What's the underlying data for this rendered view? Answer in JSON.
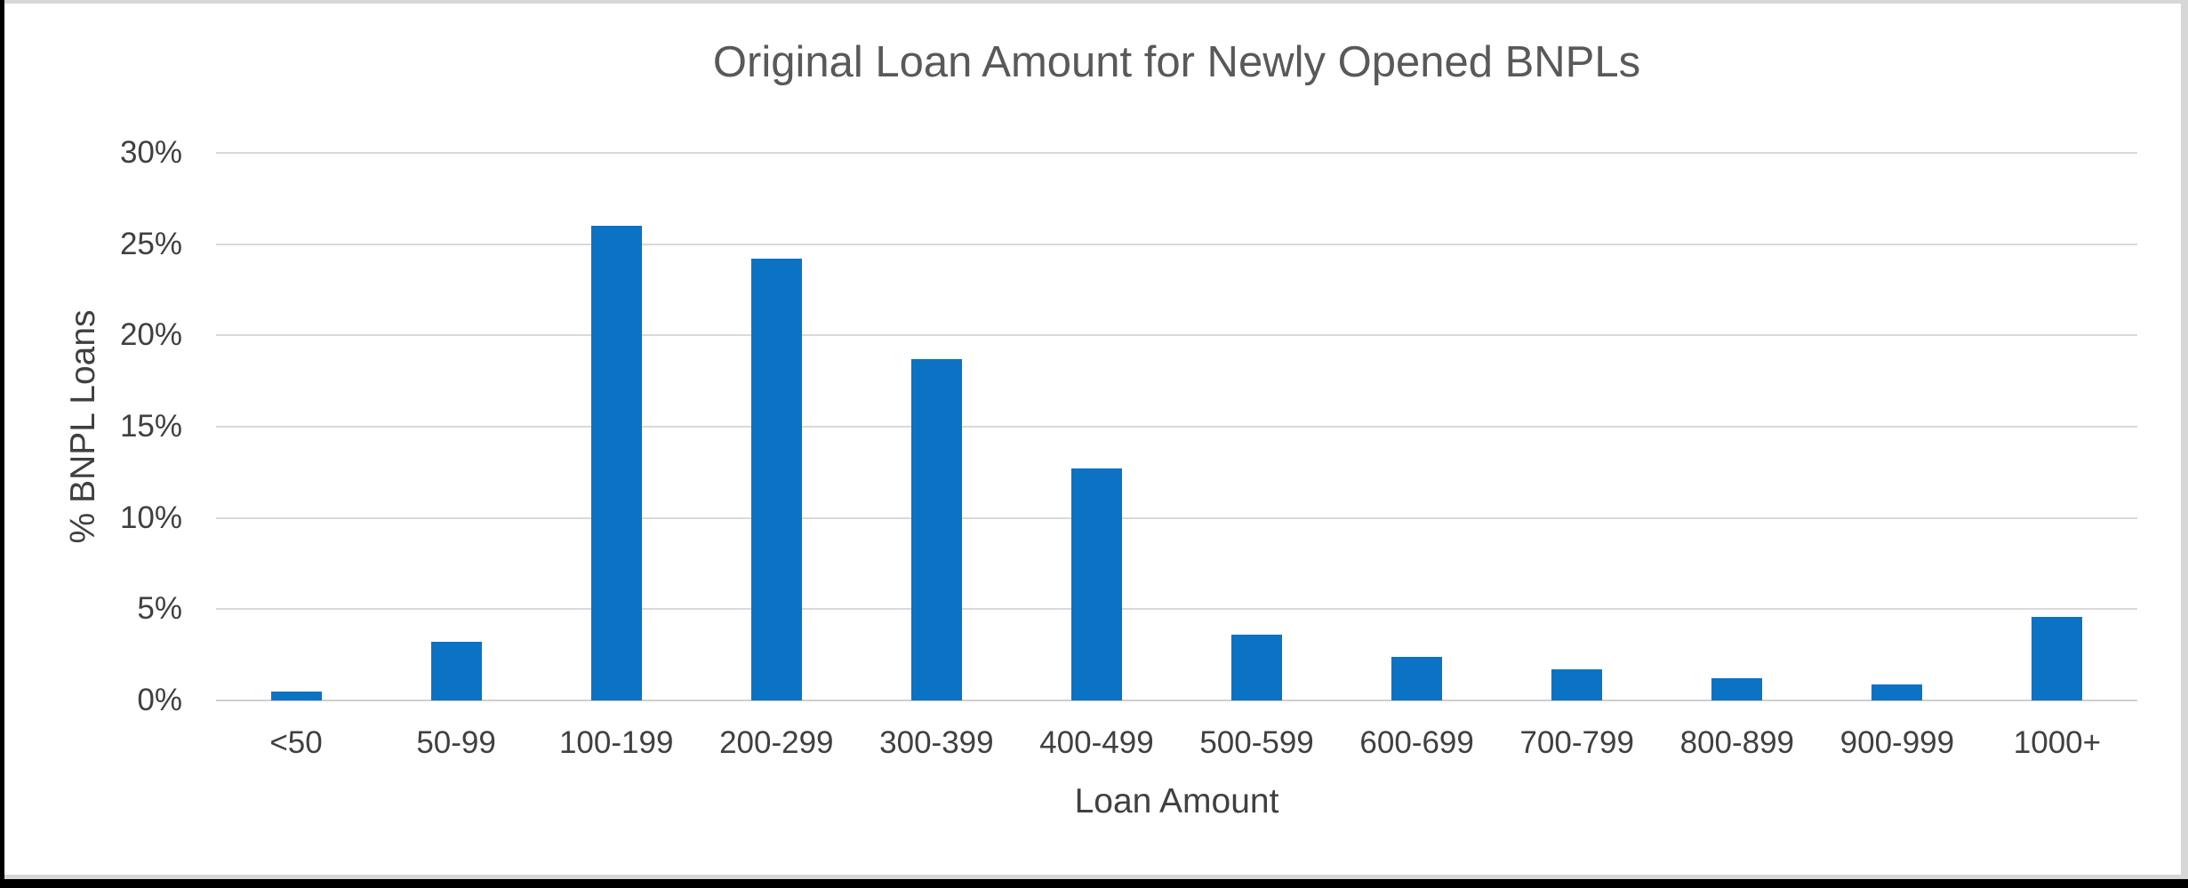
{
  "frame": {
    "outer_border_color": "#000000",
    "inner_edge_color": "#d7d7d7"
  },
  "chart_data": {
    "type": "bar",
    "title": "Original Loan Amount for Newly Opened BNPLs",
    "xlabel": "Loan Amount",
    "ylabel": "% BNPL Loans",
    "categories": [
      "<50",
      "50-99",
      "100-199",
      "200-299",
      "300-399",
      "400-499",
      "500-599",
      "600-699",
      "700-799",
      "800-899",
      "900-999",
      "1000+"
    ],
    "values": [
      0.5,
      3.2,
      26.0,
      24.2,
      18.7,
      12.7,
      3.6,
      2.4,
      1.7,
      1.2,
      0.9,
      4.6
    ],
    "ylim": [
      0,
      30
    ],
    "ytick_step": 5,
    "ytick_labels": [
      "0%",
      "5%",
      "10%",
      "15%",
      "20%",
      "25%",
      "30%"
    ],
    "grid": "horizontal",
    "legend": "none",
    "bar_color": "#0c72c3",
    "gridline_color": "#d9d9d9",
    "axis_line_color": "#cfcfcf",
    "title_color": "#595959",
    "tick_label_color": "#404040"
  }
}
